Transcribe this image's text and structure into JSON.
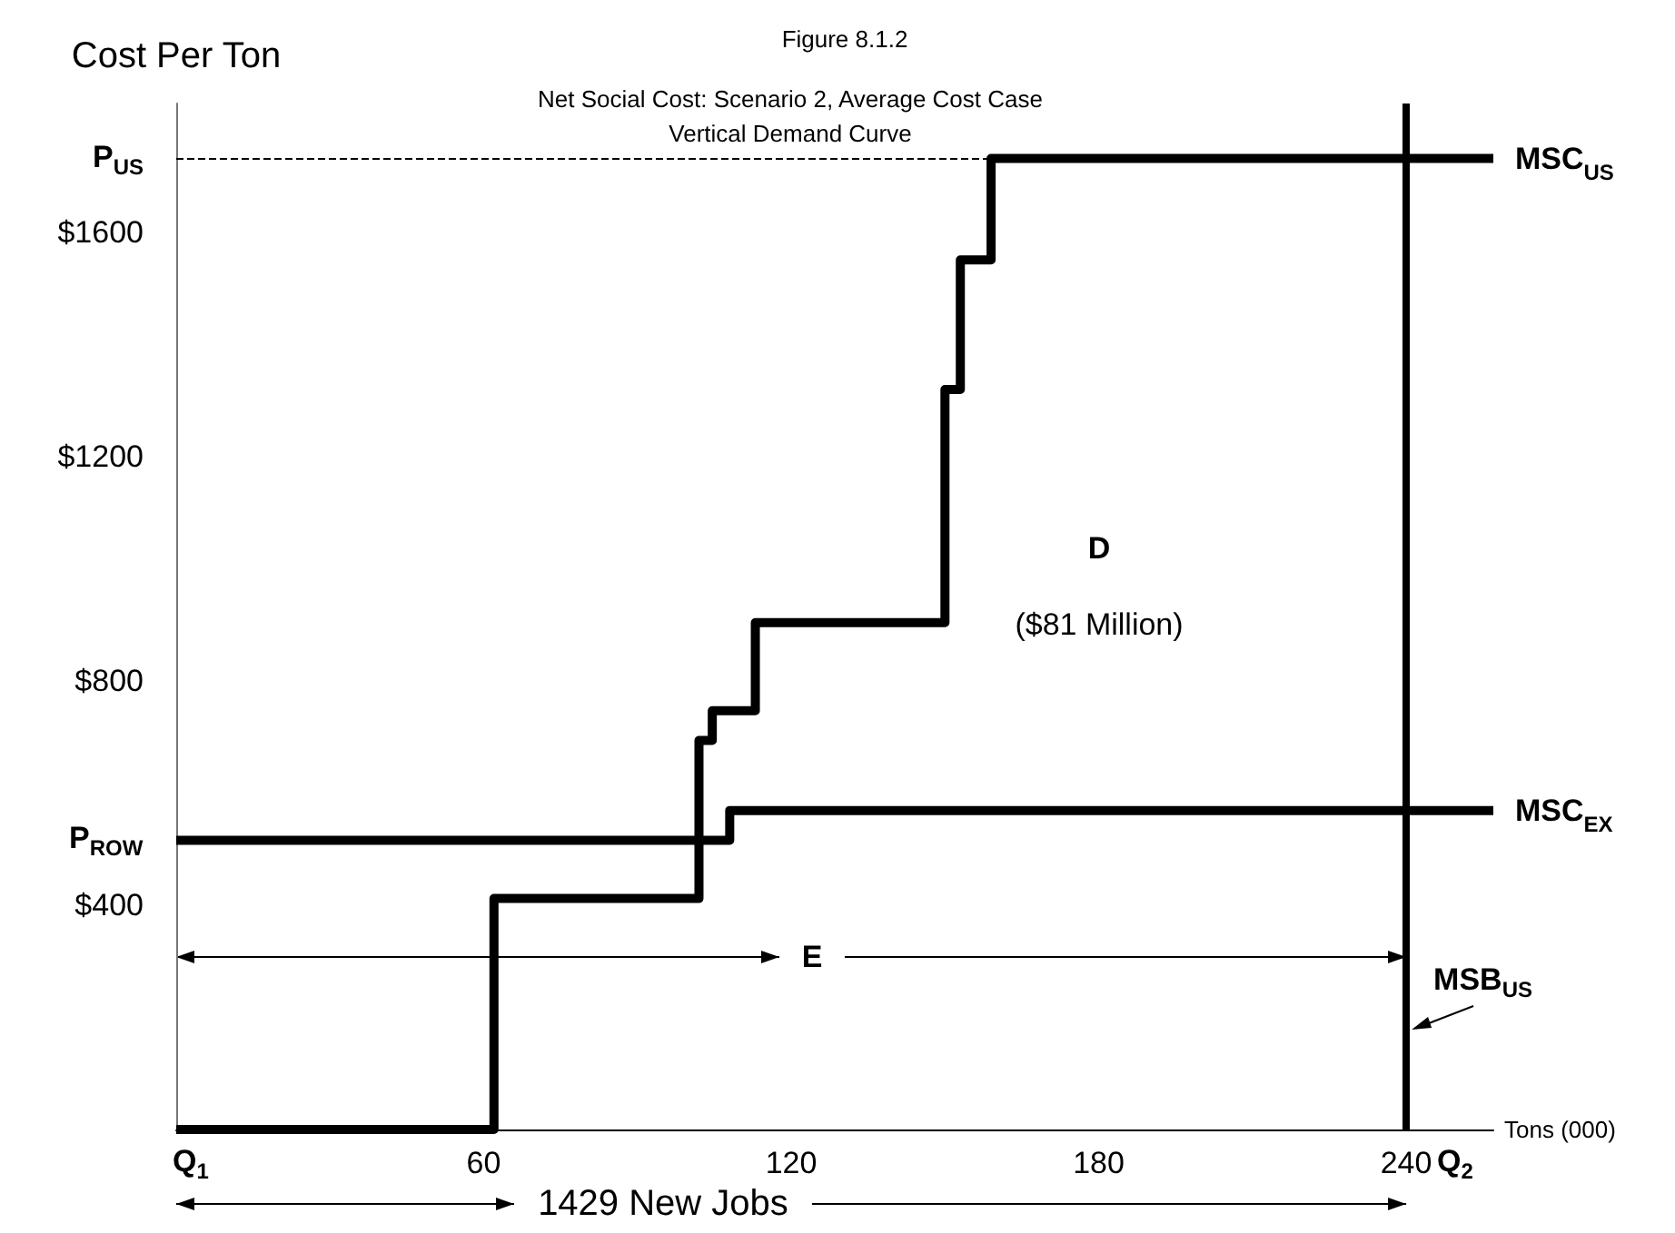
{
  "chart_data": {
    "type": "step",
    "title": "Figure 8.1.2",
    "subtitle": "Net Social Cost: Scenario 2, Average Cost Case\nVertical Demand Curve",
    "xlabel": "Tons (000)",
    "ylabel": "Cost Per Ton",
    "xlim": [
      0,
      257
    ],
    "ylim": [
      0,
      1830
    ],
    "xticks": [
      60,
      120,
      180,
      240
    ],
    "yticks": [
      {
        "value": 400,
        "label": "$400"
      },
      {
        "value": 516,
        "label": "P$_{ROW}$"
      },
      {
        "value": 800,
        "label": "$800"
      },
      {
        "value": 1200,
        "label": "$1200"
      },
      {
        "value": 1600,
        "label": "$1600"
      },
      {
        "value": 1732,
        "label": "P$_{US}$"
      }
    ],
    "series": [
      {
        "name": "MSC$_{US}$",
        "color": "#000000",
        "x": [
          0,
          62,
          62,
          102,
          102,
          104.6,
          104.6,
          113,
          113,
          150,
          150,
          153,
          153,
          159,
          159,
          257
        ],
        "values": [
          0,
          0,
          412,
          412,
          694,
          694,
          747,
          747,
          904,
          904,
          1320,
          1320,
          1551,
          1551,
          1732,
          1732
        ]
      },
      {
        "name": "MSC$_{EX}$",
        "color": "#000000",
        "x": [
          0,
          108,
          108,
          257
        ],
        "values": [
          516,
          516,
          569,
          569
        ]
      }
    ],
    "ref_lines": [
      {
        "axis": "y",
        "value": 1732,
        "color": "#000000",
        "line_style": "dashed"
      },
      {
        "axis": "x",
        "value": 240,
        "label": "MSB$_{US}$",
        "color": "#000000",
        "line_style": "solid"
      }
    ],
    "annotations": [
      "D",
      "($81 Million)",
      "E",
      "1429 New Jobs",
      "Q$_{1}$",
      "Q$_{2}$"
    ],
    "legend": false,
    "grid": false,
    "marker": "none"
  }
}
